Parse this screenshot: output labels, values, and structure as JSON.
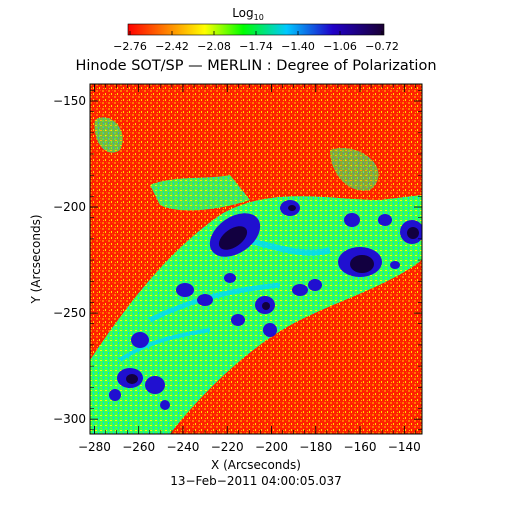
{
  "title": "Hinode SOT/SP — MERLIN : Degree of Polarization",
  "colorbar": {
    "label_main": "Log",
    "label_sub": "10",
    "ticks": [
      "−2.76",
      "−2.42",
      "−2.08",
      "−1.74",
      "−1.40",
      "−1.06",
      "−0.72"
    ],
    "colors": [
      "#ff0000",
      "#ff8000",
      "#ffff00",
      "#00ff00",
      "#00c8ff",
      "#2000c8",
      "#1a0033"
    ]
  },
  "axes": {
    "xlabel": "X (Arcseconds)",
    "ylabel": "Y (Arcseconds)",
    "xticks": [
      "−280",
      "−260",
      "−240",
      "−220",
      "−200",
      "−180",
      "−160",
      "−140"
    ],
    "yticks": [
      "−150",
      "−200",
      "−250",
      "−300"
    ],
    "xrange": [
      -282,
      -132
    ],
    "yrange": [
      -307,
      -142
    ]
  },
  "timestamp": "13−Feb−2011 04:00:05.037",
  "palette": {
    "background": "#ff2000",
    "low": "#ff8000",
    "mid": "#ffff00",
    "green": "#00ff60",
    "cyan": "#00c8ff",
    "blue": "#2010d0",
    "dark": "#120040"
  }
}
